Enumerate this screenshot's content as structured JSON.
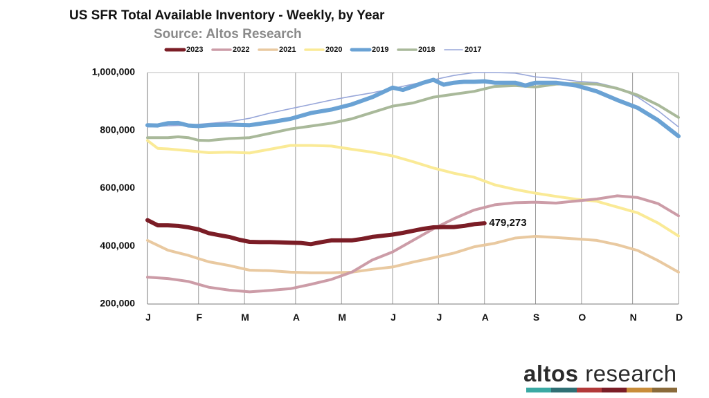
{
  "chart_data": {
    "type": "line",
    "title": "US SFR Total Available Inventory - Weekly, by Year",
    "subtitle": "Source: Altos Research",
    "ylim": [
      200000,
      1000000
    ],
    "yticks": [
      200000,
      400000,
      600000,
      800000,
      1000000
    ],
    "ytick_labels": [
      "200,000",
      "400,000",
      "600,000",
      "800,000",
      "1,000,000"
    ],
    "xlim": [
      0,
      52
    ],
    "month_ticks": [
      "J",
      "F",
      "M",
      "A",
      "M",
      "J",
      "J",
      "A",
      "S",
      "O",
      "N",
      "D"
    ],
    "month_weeks": [
      0,
      5,
      9.5,
      14.5,
      19,
      24,
      28.5,
      33,
      38,
      42.5,
      47.5,
      52
    ],
    "grid": "vertical",
    "legend_position": "top",
    "annotation": {
      "text": "479,273",
      "week": 32.5,
      "value": 479273
    },
    "series": [
      {
        "name": "2023",
        "color": "#7b1d26",
        "thick": true,
        "weeks": [
          0,
          1,
          2,
          3,
          4,
          5,
          6,
          7,
          8,
          9,
          10,
          11,
          12,
          13,
          14,
          15,
          16,
          17,
          18,
          19,
          20,
          21,
          22,
          23,
          24,
          25,
          26,
          27,
          28,
          29,
          30,
          31,
          32,
          33
        ],
        "values": [
          490000,
          472000,
          472000,
          470000,
          465000,
          458000,
          445000,
          438000,
          432000,
          422000,
          415000,
          414000,
          414000,
          413000,
          412000,
          411000,
          407000,
          414000,
          420000,
          420000,
          420000,
          425000,
          432000,
          436000,
          440000,
          446000,
          453000,
          460000,
          465000,
          466000,
          466000,
          470000,
          476000,
          479273
        ]
      },
      {
        "name": "2022",
        "color": "#cc9ca7",
        "thick": false,
        "weeks": [
          0,
          2,
          4,
          6,
          8,
          10,
          12,
          14,
          16,
          18,
          20,
          22,
          24,
          26,
          28,
          30,
          32,
          34,
          36,
          38,
          40,
          42,
          44,
          46,
          48,
          50,
          52
        ],
        "values": [
          293000,
          288000,
          278000,
          258000,
          248000,
          242000,
          247000,
          253000,
          268000,
          285000,
          310000,
          352000,
          380000,
          420000,
          460000,
          495000,
          525000,
          543000,
          550000,
          552000,
          549000,
          556000,
          563000,
          574000,
          568000,
          547000,
          505000
        ]
      },
      {
        "name": "2021",
        "color": "#e9c9a0",
        "thick": false,
        "weeks": [
          0,
          2,
          4,
          6,
          8,
          10,
          12,
          14,
          16,
          18,
          20,
          22,
          24,
          26,
          28,
          30,
          32,
          34,
          36,
          38,
          40,
          42,
          44,
          46,
          48,
          50,
          52
        ],
        "values": [
          420000,
          386000,
          368000,
          346000,
          333000,
          317000,
          315000,
          310000,
          308000,
          308000,
          310000,
          320000,
          328000,
          345000,
          360000,
          376000,
          398000,
          410000,
          428000,
          434000,
          430000,
          425000,
          420000,
          405000,
          385000,
          350000,
          310000
        ]
      },
      {
        "name": "2020",
        "color": "#faea96",
        "thick": false,
        "weeks": [
          0,
          1,
          2,
          4,
          6,
          8,
          10,
          12,
          14,
          16,
          18,
          20,
          22,
          24,
          26,
          28,
          30,
          32,
          34,
          36,
          38,
          40,
          42,
          44,
          46,
          48,
          50,
          52
        ],
        "values": [
          765000,
          738000,
          736000,
          730000,
          723000,
          725000,
          722000,
          735000,
          748000,
          748000,
          746000,
          735000,
          725000,
          712000,
          692000,
          670000,
          652000,
          638000,
          612000,
          596000,
          583000,
          572000,
          562000,
          555000,
          535000,
          515000,
          480000,
          435000
        ]
      },
      {
        "name": "2019",
        "color": "#6aa2d4",
        "thick": true,
        "weeks": [
          0,
          1,
          2,
          3,
          4,
          5,
          6,
          8,
          10,
          12,
          14,
          16,
          18,
          20,
          22,
          24,
          25,
          26,
          27,
          28,
          29,
          30,
          31,
          32,
          33,
          34,
          36,
          37,
          38,
          40,
          42,
          44,
          46,
          48,
          50,
          52
        ],
        "values": [
          818000,
          817000,
          825000,
          826000,
          817000,
          815000,
          818000,
          820000,
          818000,
          828000,
          840000,
          860000,
          872000,
          890000,
          915000,
          948000,
          940000,
          952000,
          965000,
          975000,
          958000,
          965000,
          968000,
          968000,
          970000,
          965000,
          965000,
          955000,
          965000,
          965000,
          955000,
          935000,
          905000,
          878000,
          835000,
          780000
        ]
      },
      {
        "name": "2018",
        "color": "#a9b99a",
        "thick": false,
        "weeks": [
          0,
          2,
          3,
          4,
          5,
          6,
          8,
          10,
          12,
          14,
          16,
          18,
          20,
          22,
          24,
          26,
          28,
          30,
          32,
          34,
          36,
          38,
          40,
          42,
          44,
          46,
          48,
          50,
          52
        ],
        "values": [
          775000,
          775000,
          778000,
          775000,
          766000,
          765000,
          772000,
          775000,
          790000,
          805000,
          815000,
          825000,
          840000,
          862000,
          884000,
          895000,
          915000,
          925000,
          935000,
          952000,
          955000,
          950000,
          960000,
          962000,
          960000,
          945000,
          922000,
          888000,
          845000
        ]
      },
      {
        "name": "2017",
        "color": "#97a6d9",
        "thick": false,
        "weeks": [
          0,
          2,
          4,
          6,
          8,
          10,
          12,
          14,
          16,
          18,
          20,
          22,
          24,
          26,
          28,
          30,
          32,
          34,
          36,
          38,
          40,
          42,
          44,
          46,
          48,
          50,
          52
        ],
        "values": [
          812000,
          816000,
          818000,
          824000,
          830000,
          842000,
          860000,
          875000,
          890000,
          905000,
          918000,
          930000,
          945000,
          960000,
          975000,
          990000,
          1000000,
          1000000,
          998000,
          985000,
          980000,
          970000,
          965000,
          948000,
          915000,
          868000,
          812000
        ]
      }
    ]
  },
  "logo": {
    "word_bold": "altos",
    "word_light": " research",
    "colors": [
      "#3aa9a3",
      "#2f6f74",
      "#b23a3a",
      "#7b1d26",
      "#c98d3a",
      "#8a6a3a"
    ]
  }
}
